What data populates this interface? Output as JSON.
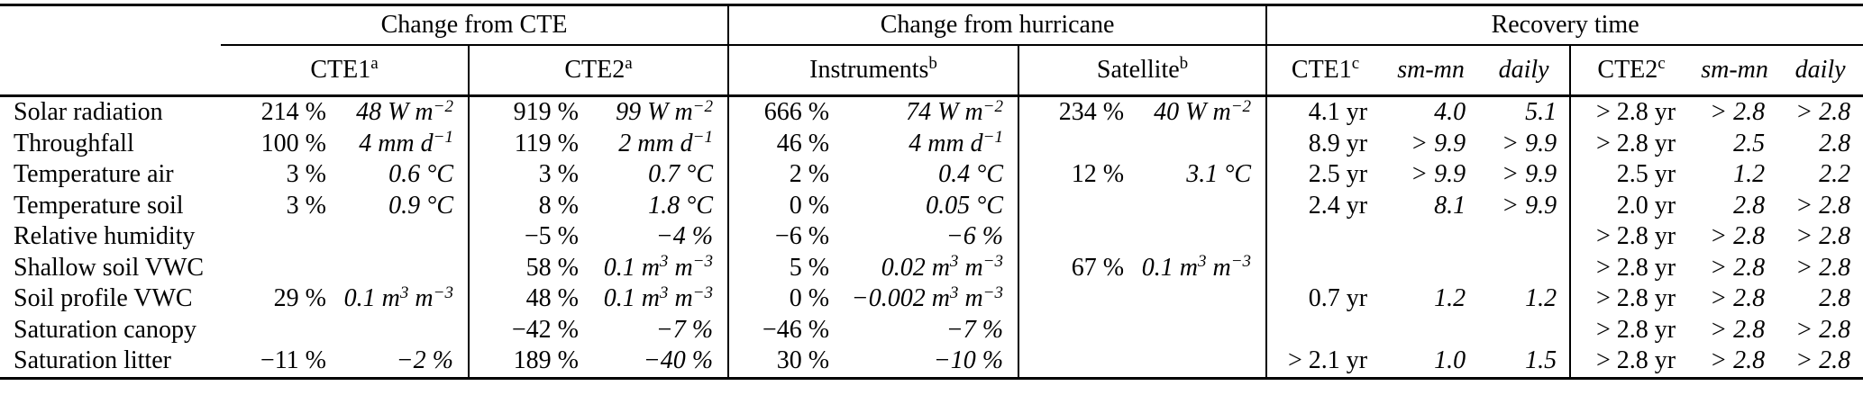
{
  "colors": {
    "text": "#000000",
    "background": "#ffffff",
    "rule": "#000000"
  },
  "table": {
    "group_headers": [
      {
        "label": "Change from CTE"
      },
      {
        "label": "Change from hurricane"
      },
      {
        "label": "Recovery time"
      }
    ],
    "sub_headers": {
      "cte1": "CTE1^{a}",
      "cte2": "CTE2^{a}",
      "instruments": "Instruments^{b}",
      "satellite": "Satellite^{b}",
      "rec_cte1": "CTE1^{c}",
      "rec_cte1_smmn": "sm-mn",
      "rec_cte1_daily": "daily",
      "rec_cte2": "CTE2^{c}",
      "rec_cte2_smmn": "sm-mn",
      "rec_cte2_daily": "daily"
    },
    "rows": [
      [
        "Solar radiation",
        "214 %",
        "48 W m^{−2}",
        "919 %",
        "99 W m^{−2}",
        "666 %",
        "74 W m^{−2}",
        "234 %",
        "40 W m^{−2}",
        "4.1 yr",
        "4.0",
        "5.1",
        "> 2.8 yr",
        "> 2.8",
        "> 2.8"
      ],
      [
        "Throughfall",
        "100 %",
        "4 mm d^{−1}",
        "119 %",
        "2 mm d^{−1}",
        "46 %",
        "4 mm d^{−1}",
        "",
        "",
        "8.9 yr",
        "> 9.9",
        "> 9.9",
        "> 2.8 yr",
        "2.5",
        "2.8"
      ],
      [
        "Temperature air",
        "3 %",
        "0.6 °C",
        "3 %",
        "0.7 °C",
        "2 %",
        "0.4 °C",
        "12 %",
        "3.1 °C",
        "2.5 yr",
        "> 9.9",
        "> 9.9",
        "2.5 yr",
        "1.2",
        "2.2"
      ],
      [
        "Temperature soil",
        "3 %",
        "0.9 °C",
        "8 %",
        "1.8 °C",
        "0 %",
        "0.05 °C",
        "",
        "",
        "2.4 yr",
        "8.1",
        "> 9.9",
        "2.0 yr",
        "2.8",
        "> 2.8"
      ],
      [
        "Relative humidity",
        "",
        "",
        "−5 %",
        "−4 %",
        "−6 %",
        "−6 %",
        "",
        "",
        "",
        "",
        "",
        "> 2.8 yr",
        "> 2.8",
        "> 2.8"
      ],
      [
        "Shallow soil VWC",
        "",
        "",
        "58 %",
        "0.1 m^{3} m^{−3}",
        "5 %",
        "0.02 m^{3} m^{−3}",
        "67 %",
        "0.1 m^{3} m^{−3}",
        "",
        "",
        "",
        "> 2.8 yr",
        "> 2.8",
        "> 2.8"
      ],
      [
        "Soil profile VWC",
        "29 %",
        "0.1 m^{3} m^{−3}",
        "48 %",
        "0.1 m^{3} m^{−3}",
        "0 %",
        "−0.002 m^{3} m^{−3}",
        "",
        "",
        "0.7 yr",
        "1.2",
        "1.2",
        "> 2.8 yr",
        "> 2.8",
        "2.8"
      ],
      [
        "Saturation canopy",
        "",
        "",
        "−42 %",
        "−7 %",
        "−46 %",
        "−7 %",
        "",
        "",
        "",
        "",
        "",
        "> 2.8 yr",
        "> 2.8",
        "> 2.8"
      ],
      [
        "Saturation litter",
        "−11 %",
        "−2 %",
        "189 %",
        "−40 %",
        "30 %",
        "−10 %",
        "",
        "",
        "> 2.1 yr",
        "1.0",
        "1.5",
        "> 2.8 yr",
        "> 2.8",
        "> 2.8"
      ]
    ]
  }
}
